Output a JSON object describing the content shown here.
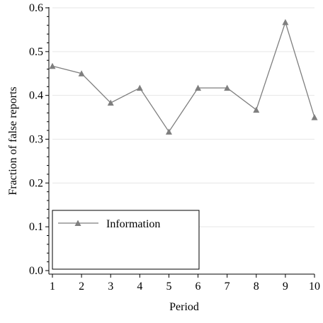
{
  "chart_data": {
    "type": "line",
    "x": [
      1,
      2,
      3,
      4,
      5,
      6,
      7,
      8,
      9,
      10
    ],
    "series": [
      {
        "name": "Information",
        "values": [
          0.467,
          0.45,
          0.383,
          0.417,
          0.317,
          0.417,
          0.417,
          0.367,
          0.567,
          0.35
        ],
        "marker": "triangle",
        "color": "#7f7f7f"
      }
    ],
    "xlabel": "Period",
    "ylabel": "Fraction of false reports",
    "xlim": [
      1,
      10
    ],
    "ylim": [
      0,
      0.6
    ],
    "x_ticks": [
      "1",
      "2",
      "3",
      "4",
      "5",
      "6",
      "7",
      "8",
      "9",
      "10"
    ],
    "y_ticks": [
      "0.0",
      "0.1",
      "0.2",
      "0.3",
      "0.4",
      "0.5",
      "0.6"
    ],
    "y_tick_values": [
      0,
      0.1,
      0.2,
      0.3,
      0.4,
      0.5,
      0.6
    ],
    "grid": true,
    "grid_color": "#e6e6e6",
    "axis_color": "#000000",
    "legend_position": "bottom-left"
  }
}
